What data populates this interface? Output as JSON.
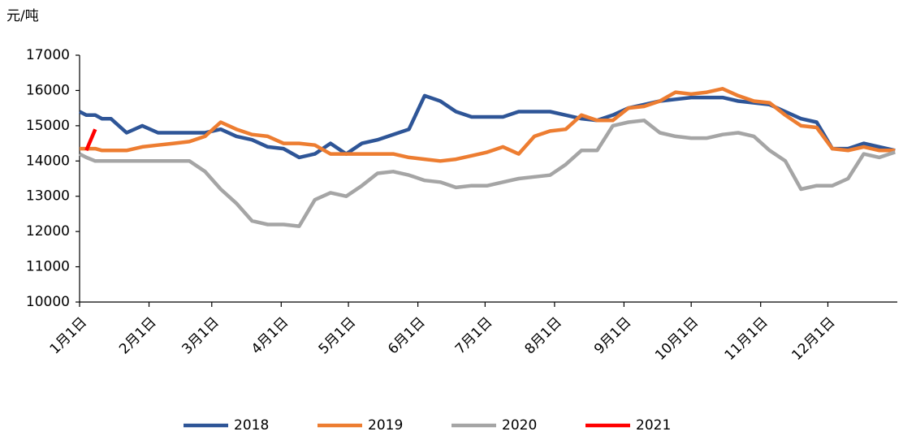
{
  "chart_data": {
    "type": "line",
    "y_label": "元/吨",
    "x": [
      1,
      4,
      8,
      11,
      15,
      22,
      29,
      36,
      43,
      50,
      57,
      64,
      71,
      78,
      85,
      92,
      99,
      106,
      113,
      120,
      127,
      134,
      141,
      148,
      155,
      162,
      169,
      176,
      183,
      190,
      197,
      204,
      211,
      218,
      225,
      232,
      239,
      246,
      253,
      260,
      267,
      274,
      281,
      288,
      295,
      302,
      309,
      316,
      323,
      330,
      337,
      344,
      351,
      358,
      365
    ],
    "xlim": [
      1,
      366
    ],
    "xticks": [
      {
        "value": 1,
        "label": "1月1日"
      },
      {
        "value": 32,
        "label": "2月1日"
      },
      {
        "value": 60,
        "label": "3月1日"
      },
      {
        "value": 91,
        "label": "4月1日"
      },
      {
        "value": 121,
        "label": "5月1日"
      },
      {
        "value": 152,
        "label": "6月1日"
      },
      {
        "value": 182,
        "label": "7月1日"
      },
      {
        "value": 213,
        "label": "8月1日"
      },
      {
        "value": 244,
        "label": "9月1日"
      },
      {
        "value": 274,
        "label": "10月1日"
      },
      {
        "value": 305,
        "label": "11月1日"
      },
      {
        "value": 335,
        "label": "12月1日"
      }
    ],
    "ylim": [
      10000,
      17000
    ],
    "yticks": [
      10000,
      11000,
      12000,
      13000,
      14000,
      15000,
      16000,
      17000
    ],
    "legend": "bottom",
    "series": [
      {
        "name": "2018",
        "color": "#2e5597",
        "values": [
          15400,
          15300,
          15300,
          15200,
          15200,
          14800,
          15000,
          14800,
          14800,
          14800,
          14800,
          14900,
          14700,
          14600,
          14400,
          14350,
          14100,
          14200,
          14500,
          14200,
          14500,
          14600,
          14750,
          14900,
          15850,
          15700,
          15400,
          15250,
          15250,
          15250,
          15400,
          15400,
          15400,
          15300,
          15200,
          15150,
          15300,
          15500,
          15600,
          15700,
          15750,
          15800,
          15800,
          15800,
          15700,
          15650,
          15600,
          15400,
          15200,
          15100,
          14350,
          14350,
          14500,
          14400,
          14300
        ]
      },
      {
        "name": "2019",
        "color": "#ed7d31",
        "values": [
          14350,
          14350,
          14350,
          14300,
          14300,
          14300,
          14400,
          14450,
          14500,
          14550,
          14700,
          15100,
          14900,
          14750,
          14700,
          14500,
          14500,
          14450,
          14200,
          14200,
          14200,
          14200,
          14200,
          14100,
          14050,
          14000,
          14050,
          14150,
          14250,
          14400,
          14200,
          14700,
          14850,
          14900,
          15300,
          15150,
          15150,
          15500,
          15550,
          15700,
          15950,
          15900,
          15950,
          16050,
          15850,
          15700,
          15650,
          15300,
          15000,
          14950,
          14350,
          14300,
          14400,
          14300,
          14300
        ]
      },
      {
        "name": "2020",
        "color": "#a5a5a5",
        "values": [
          14200,
          14100,
          14000,
          14000,
          14000,
          14000,
          14000,
          14000,
          14000,
          14000,
          13700,
          13200,
          12800,
          12300,
          12200,
          12200,
          12150,
          12900,
          13100,
          13000,
          13300,
          13650,
          13700,
          13600,
          13450,
          13400,
          13250,
          13300,
          13300,
          13400,
          13500,
          13550,
          13600,
          13900,
          14300,
          14300,
          15000,
          15100,
          15150,
          14800,
          14700,
          14650,
          14650,
          14750,
          14800,
          14700,
          14300,
          14000,
          13200,
          13300,
          13300,
          13500,
          14200,
          14100,
          14250
        ]
      },
      {
        "name": "2021",
        "color": "#ff0000",
        "values": [
          null,
          14300,
          14900,
          null,
          null,
          null,
          null,
          null,
          null,
          null,
          null,
          null,
          null,
          null,
          null,
          null,
          null,
          null,
          null,
          null,
          null,
          null,
          null,
          null,
          null,
          null,
          null,
          null,
          null,
          null,
          null,
          null,
          null,
          null,
          null,
          null,
          null,
          null,
          null,
          null,
          null,
          null,
          null,
          null,
          null,
          null,
          null,
          null,
          null,
          null,
          null,
          null,
          null,
          null,
          null
        ]
      }
    ]
  }
}
